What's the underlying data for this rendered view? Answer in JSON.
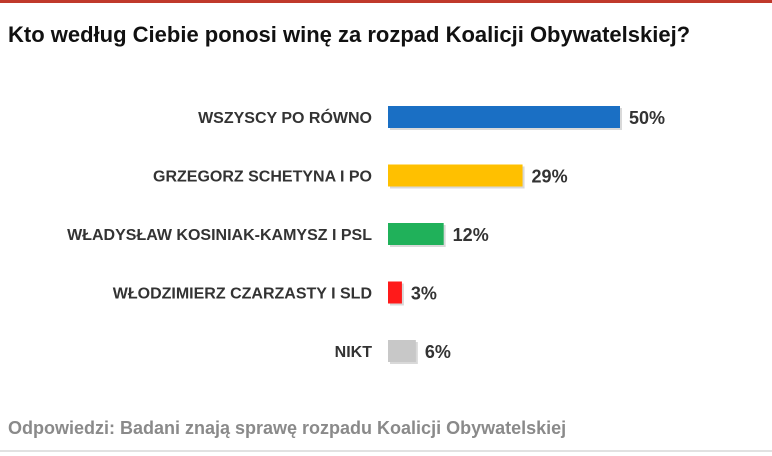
{
  "chart_data": {
    "type": "bar",
    "orientation": "horizontal",
    "title": "Kto według Ciebie ponosi winę za rozpad Koalicji Obywatelskiej?",
    "categories": [
      "WSZYSCY PO RÓWNO",
      "GRZEGORZ SCHETYNA I PO",
      "WŁADYSŁAW KOSINIAK-KAMYSZ I PSL",
      "WŁODZIMIERZ CZARZASTY I SLD",
      "NIKT"
    ],
    "values": [
      50,
      29,
      12,
      3,
      6
    ],
    "value_labels": [
      "50%",
      "29%",
      "12%",
      "3%",
      "6%"
    ],
    "colors": [
      "#1a6fc4",
      "#ffc000",
      "#20b15a",
      "#ff1a1a",
      "#c8c8c8"
    ],
    "xlim": [
      0,
      100
    ],
    "grid": false,
    "legend": "none"
  },
  "footnote": "Odpowiedzi: Badani znają sprawę rozpadu Koalicji Obywatelskiej"
}
